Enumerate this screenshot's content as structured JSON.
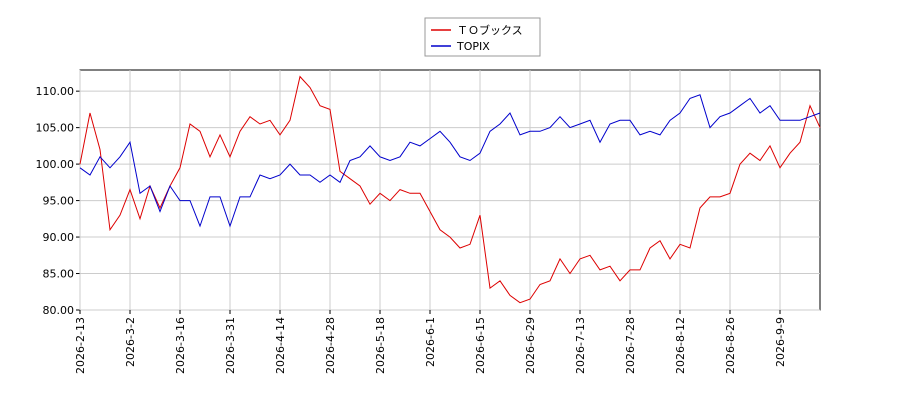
{
  "chart_data": {
    "type": "line",
    "categories": [
      "2026-2-13",
      null,
      null,
      null,
      null,
      "2026-3-2",
      null,
      null,
      null,
      null,
      "2026-3-16",
      null,
      null,
      null,
      null,
      "2026-3-31",
      null,
      null,
      null,
      null,
      "2026-4-14",
      null,
      null,
      null,
      null,
      "2026-4-28",
      null,
      null,
      null,
      null,
      "2026-5-18",
      null,
      null,
      null,
      null,
      "2026-6-1",
      null,
      null,
      null,
      null,
      "2026-6-15",
      null,
      null,
      null,
      null,
      "2026-6-29",
      null,
      null,
      null,
      null,
      "2026-7-13",
      null,
      null,
      null,
      null,
      "2026-7-28",
      null,
      null,
      null,
      null,
      "2026-8-12",
      null,
      null,
      null,
      null,
      "2026-8-26",
      null,
      null,
      null,
      null,
      "2026-9-9",
      null,
      null,
      null,
      null
    ],
    "series": [
      {
        "name": "ＴＯブックス",
        "color": "#dd0000",
        "values": [
          100,
          107,
          102,
          91,
          93,
          96.5,
          92.5,
          97,
          94,
          97,
          99.5,
          105.5,
          104.5,
          101,
          104,
          101,
          104.5,
          106.5,
          105.5,
          106,
          104,
          106,
          112,
          110.5,
          108,
          107.5,
          99,
          98,
          97,
          94.5,
          96,
          95,
          96.5,
          96,
          96,
          93.5,
          91,
          90,
          88.5,
          89,
          93,
          83,
          84,
          82,
          81,
          81.5,
          83.5,
          84,
          87,
          85,
          87,
          87.5,
          85.5,
          86,
          84,
          85.5,
          85.5,
          88.5,
          89.5,
          87,
          89,
          88.5,
          94,
          95.5,
          95.5,
          96,
          100,
          101.5,
          100.5,
          102.5,
          99.5,
          101.5,
          103,
          108,
          105
        ]
      },
      {
        "name": "TOPIX",
        "color": "#0000cc",
        "values": [
          99.5,
          98.5,
          101,
          99.5,
          101,
          103,
          96,
          97,
          93.5,
          97,
          95,
          95,
          91.5,
          95.5,
          95.5,
          91.5,
          95.5,
          95.5,
          98.5,
          98,
          98.5,
          100,
          98.5,
          98.5,
          97.5,
          98.5,
          97.5,
          100.5,
          101,
          102.5,
          101,
          100.5,
          101,
          103,
          102.5,
          103.5,
          104.5,
          103,
          101,
          100.5,
          101.5,
          104.5,
          105.5,
          107,
          104,
          104.5,
          104.5,
          105,
          106.5,
          105,
          105.5,
          106,
          103,
          105.5,
          106,
          106,
          104,
          104.5,
          104,
          106,
          107,
          109,
          109.5,
          105,
          106.5,
          107,
          108,
          109,
          107,
          108,
          106,
          106,
          106,
          106.5,
          107
        ]
      }
    ],
    "ylim": [
      80,
      112.9
    ],
    "yticks": [
      {
        "value": 80,
        "label": "80.00"
      },
      {
        "value": 85,
        "label": "85.00"
      },
      {
        "value": 90,
        "label": "90.00"
      },
      {
        "value": 95,
        "label": "95.00"
      },
      {
        "value": 100,
        "label": "100.00"
      },
      {
        "value": 105,
        "label": "105.00"
      },
      {
        "value": 110,
        "label": "110.00"
      }
    ],
    "grid": true
  }
}
